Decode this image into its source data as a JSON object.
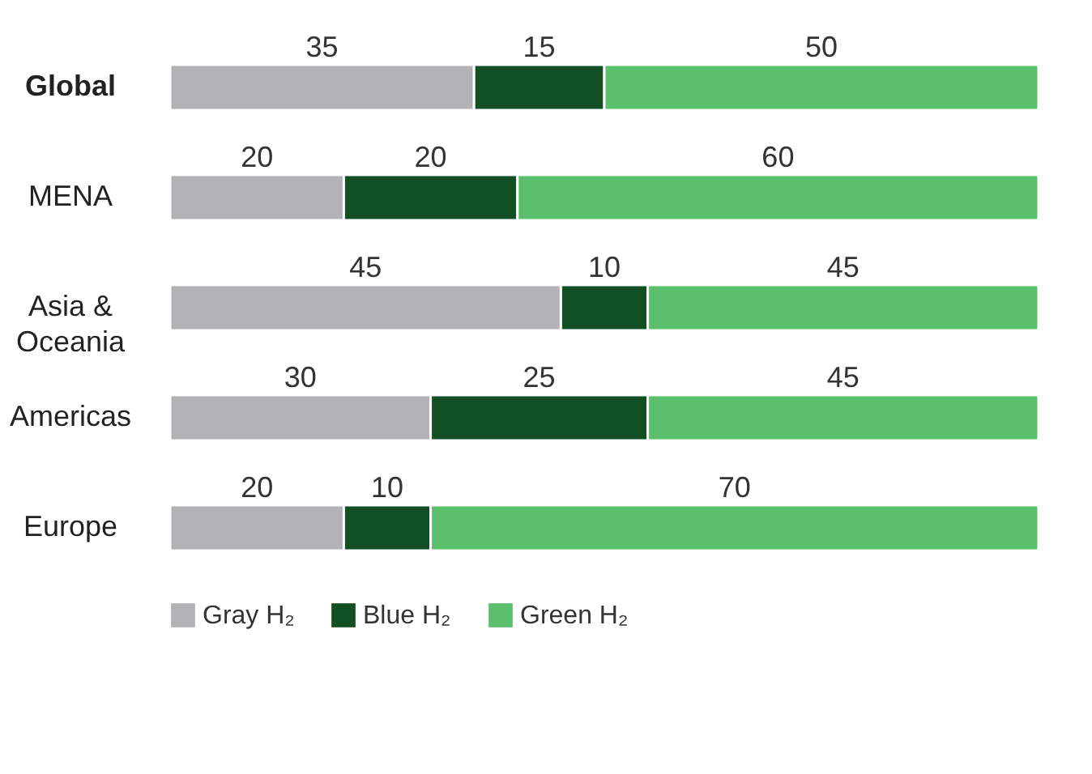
{
  "chart_data": {
    "type": "bar",
    "orientation": "horizontal",
    "stacked": true,
    "data_labels": true,
    "legend": "bottom",
    "xlim": [
      0,
      100
    ],
    "categories": [
      "Global",
      "MENA",
      "Asia & Oceania",
      "Americas",
      "Europe"
    ],
    "series": [
      {
        "name": "Gray H₂",
        "color": "#b3b3b6",
        "values": [
          35,
          20,
          45,
          30,
          20
        ]
      },
      {
        "name": "Blue H₂",
        "color": "#134f24",
        "values": [
          15,
          20,
          10,
          25,
          10
        ]
      },
      {
        "name": "Green H₂",
        "color": "#5bbf6b",
        "values": [
          50,
          60,
          45,
          45,
          70
        ]
      }
    ]
  }
}
